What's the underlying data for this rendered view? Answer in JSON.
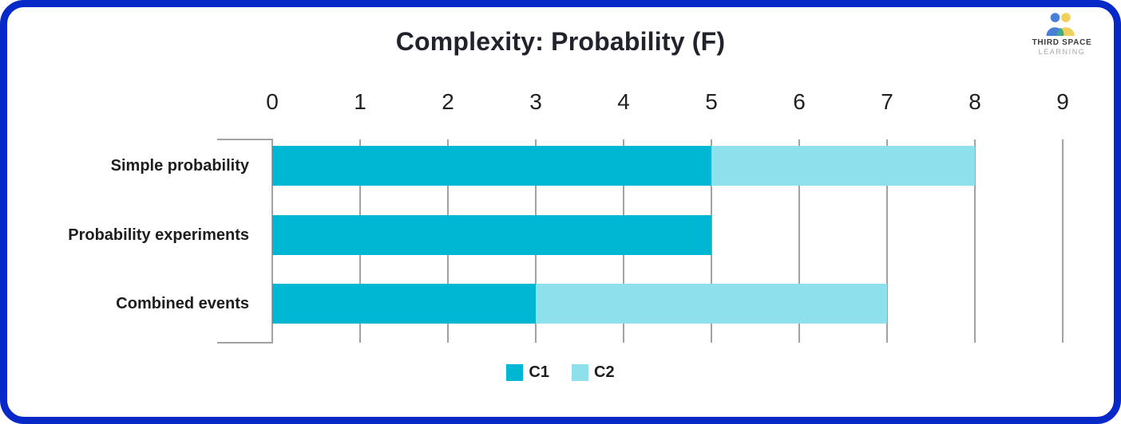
{
  "title": "Complexity: Probability (F)",
  "branding": {
    "line1": "THIRD SPACE",
    "line2": "LEARNING"
  },
  "chart_data": {
    "type": "bar",
    "orientation": "horizontal",
    "stacked": true,
    "title": "Complexity: Probability (F)",
    "categories": [
      "Simple probability",
      "Probability experiments",
      "Combined events"
    ],
    "series": [
      {
        "name": "C1",
        "color": "#00b7d3",
        "values": [
          5,
          5,
          3
        ]
      },
      {
        "name": "C2",
        "color": "#8ee0ec",
        "values": [
          3,
          0,
          4
        ]
      }
    ],
    "totals": [
      8,
      5,
      7
    ],
    "x_axis": {
      "min": 0,
      "max": 9,
      "ticks": [
        0,
        1,
        2,
        3,
        4,
        5,
        6,
        7,
        8,
        9
      ],
      "position": "top"
    },
    "grid": true,
    "legend_position": "bottom"
  },
  "legend": {
    "items": [
      {
        "label": "C1",
        "color": "#00b7d3"
      },
      {
        "label": "C2",
        "color": "#8ee0ec"
      }
    ]
  },
  "colors": {
    "frame_border": "#0629c8",
    "grid": "#a2a2a2",
    "text": "#1d1d1f",
    "c1": "#00b7d3",
    "c2": "#8ee0ec",
    "logo_blue": "#4a7fd9",
    "logo_yellow": "#f0cf5a",
    "logo_green": "#3fa98e",
    "brand_text": "#3c3c3c",
    "brand_subtext": "#a8a8a8"
  }
}
